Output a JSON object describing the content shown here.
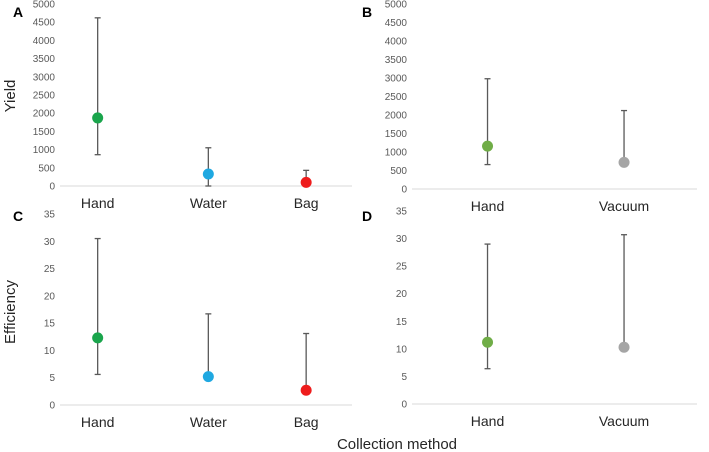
{
  "figure": {
    "x_axis_label": "Collection method",
    "row_labels": [
      "Yield",
      "Efficiency"
    ]
  },
  "chart_data": [
    {
      "panel": "A",
      "type": "scatter",
      "categories": [
        "Hand",
        "Water",
        "Bag"
      ],
      "values": [
        1870,
        330,
        100
      ],
      "error_low": [
        860,
        0,
        0
      ],
      "error_high": [
        4620,
        1050,
        430
      ],
      "colors": [
        "#1aa54c",
        "#1fa8e1",
        "#ee1c1c"
      ],
      "ylabel": "Yield",
      "ylim": [
        0,
        5000
      ],
      "yticks": [
        0,
        500,
        1000,
        1500,
        2000,
        2500,
        3000,
        3500,
        4000,
        4500,
        5000
      ]
    },
    {
      "panel": "B",
      "type": "scatter",
      "categories": [
        "Hand",
        "Vacuum"
      ],
      "values": [
        1160,
        720
      ],
      "error_low": [
        660,
        720
      ],
      "error_high": [
        2980,
        2120
      ],
      "colors": [
        "#70ad47",
        "#a5a5a5"
      ],
      "ylabel": "",
      "ylim": [
        0,
        5000
      ],
      "yticks": [
        0,
        500,
        1000,
        1500,
        2000,
        2500,
        3000,
        3500,
        4000,
        4500,
        5000
      ]
    },
    {
      "panel": "C",
      "type": "scatter",
      "categories": [
        "Hand",
        "Water",
        "Bag"
      ],
      "values": [
        12.3,
        5.2,
        2.7
      ],
      "error_low": [
        5.6,
        5.2,
        2.7
      ],
      "error_high": [
        30.5,
        16.7,
        13.1
      ],
      "colors": [
        "#1aa54c",
        "#1fa8e1",
        "#ee1c1c"
      ],
      "ylabel": "Efficiency",
      "ylim": [
        0,
        35
      ],
      "yticks": [
        0,
        5,
        10,
        15,
        20,
        25,
        30,
        35
      ]
    },
    {
      "panel": "D",
      "type": "scatter",
      "categories": [
        "Hand",
        "Vacuum"
      ],
      "values": [
        11.2,
        10.3
      ],
      "error_low": [
        6.4,
        10.3
      ],
      "error_high": [
        29.0,
        30.7
      ],
      "colors": [
        "#70ad47",
        "#a5a5a5"
      ],
      "ylabel": "",
      "ylim": [
        0,
        35
      ],
      "yticks": [
        0,
        5,
        10,
        15,
        20,
        25,
        30,
        35
      ]
    }
  ]
}
